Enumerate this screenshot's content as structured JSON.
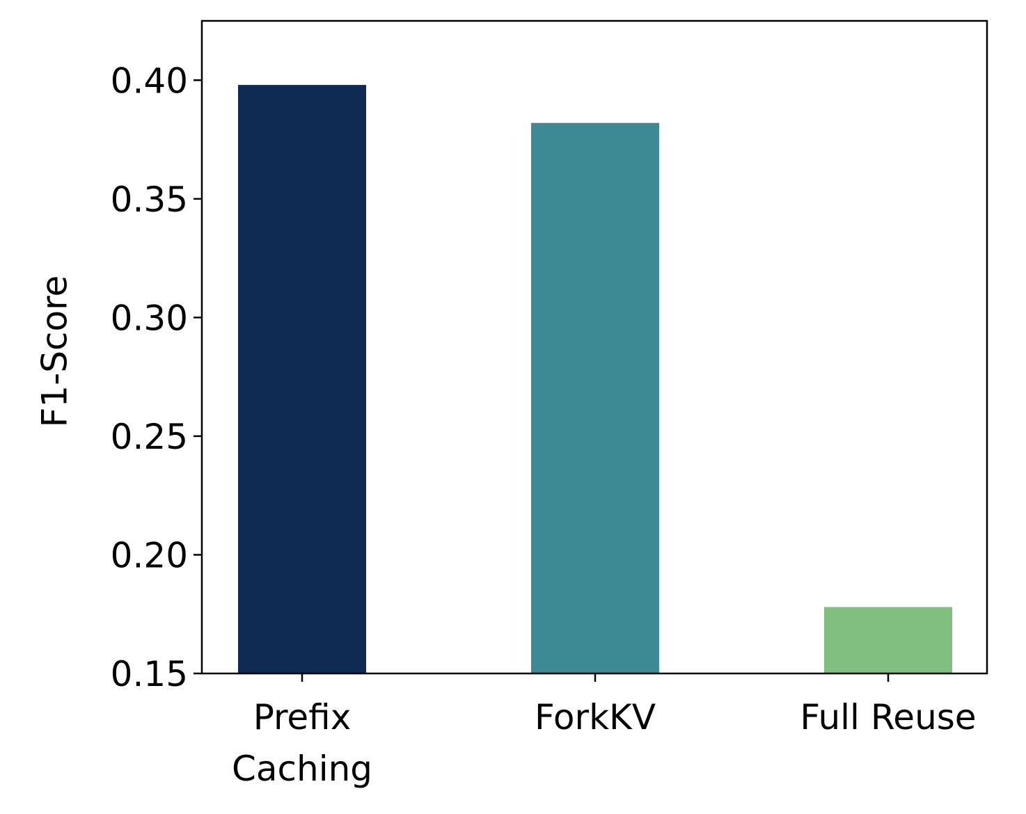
{
  "chart_data": {
    "type": "bar",
    "y_label": "F1-Score",
    "categories": [
      "Prefix\nCaching",
      "ForkKV",
      "Full Reuse"
    ],
    "values": [
      0.398,
      0.382,
      0.178
    ],
    "colors": [
      "#0f2b54",
      "#3d8a94",
      "#80bf80"
    ],
    "ylim": [
      0.15,
      0.425
    ],
    "yticks": [
      {
        "value": 0.15,
        "label": "0.15"
      },
      {
        "value": 0.2,
        "label": "0.20"
      },
      {
        "value": 0.25,
        "label": "0.25"
      },
      {
        "value": 0.3,
        "label": "0.30"
      },
      {
        "value": 0.35,
        "label": "0.35"
      },
      {
        "value": 0.4,
        "label": "0.40"
      }
    ],
    "grid": false
  }
}
